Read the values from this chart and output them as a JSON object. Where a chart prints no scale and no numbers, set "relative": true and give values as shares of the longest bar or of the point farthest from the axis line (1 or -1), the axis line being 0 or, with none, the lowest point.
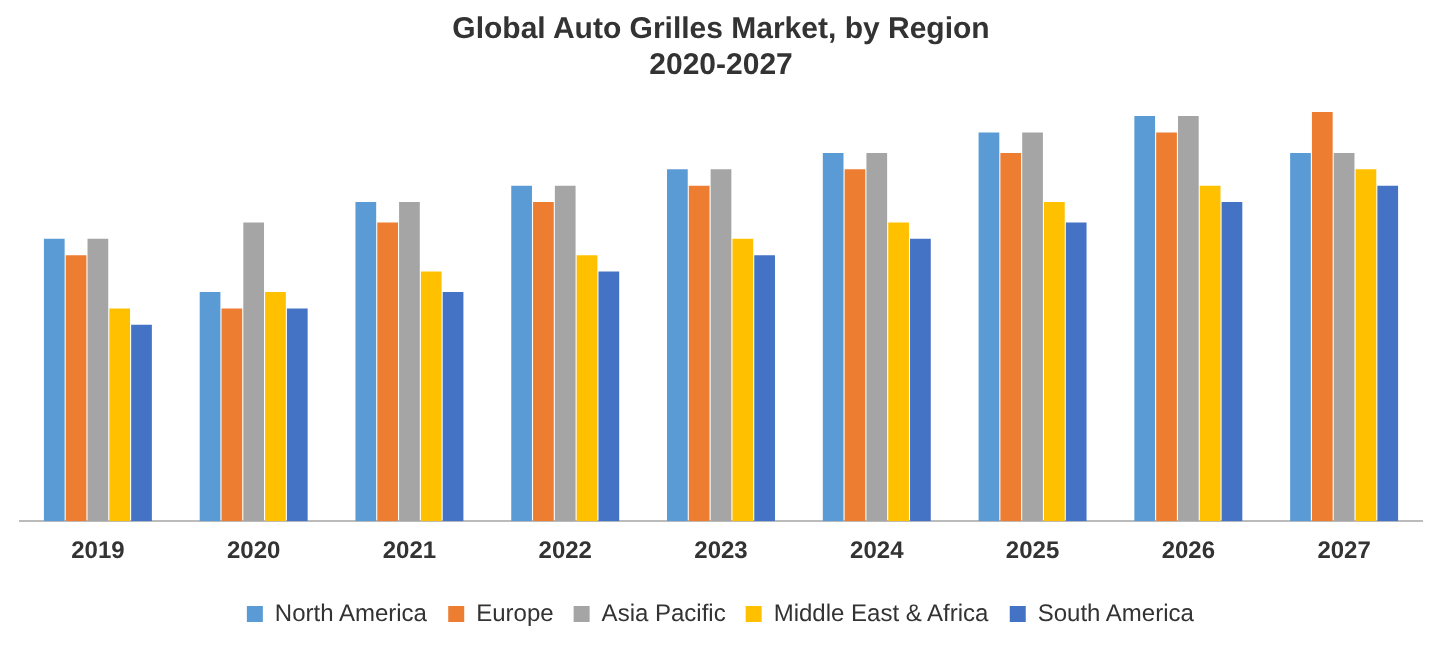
{
  "chart_data": {
    "type": "bar",
    "title": "Global Auto Grilles Market, by Region\n2020-2027",
    "relative": true,
    "grid": false,
    "legend": "bottom",
    "categories": [
      "2019",
      "2020",
      "2021",
      "2022",
      "2023",
      "2024",
      "2025",
      "2026",
      "2027"
    ],
    "series": [
      {
        "name": "North America",
        "color": "#5b9bd5",
        "values": [
          0.69,
          0.56,
          0.78,
          0.82,
          0.86,
          0.9,
          0.95,
          0.99,
          0.9
        ]
      },
      {
        "name": "Europe",
        "color": "#ed7d31",
        "values": [
          0.65,
          0.52,
          0.73,
          0.78,
          0.82,
          0.86,
          0.9,
          0.95,
          1
        ]
      },
      {
        "name": "Asia Pacific",
        "color": "#a5a5a5",
        "values": [
          0.69,
          0.73,
          0.78,
          0.82,
          0.86,
          0.9,
          0.95,
          0.99,
          0.9
        ]
      },
      {
        "name": "Middle East & Africa",
        "color": "#ffc000",
        "values": [
          0.52,
          0.56,
          0.61,
          0.65,
          0.69,
          0.73,
          0.78,
          0.82,
          0.86
        ]
      },
      {
        "name": "South America",
        "color": "#4472c4",
        "values": [
          0.48,
          0.52,
          0.56,
          0.61,
          0.65,
          0.69,
          0.73,
          0.78,
          0.82
        ]
      }
    ]
  }
}
